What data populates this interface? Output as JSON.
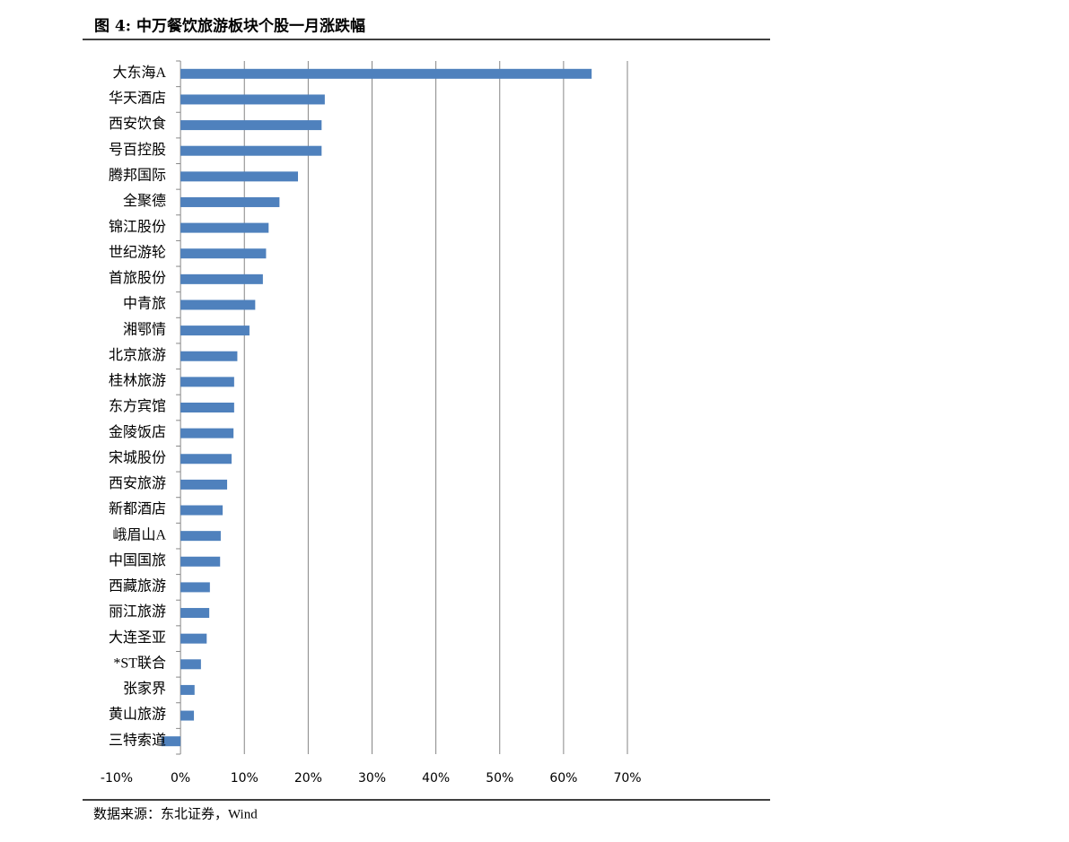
{
  "chart_data": {
    "type": "barh",
    "title": "图 4:  中万餐饮旅游板块个股一月涨跌幅",
    "source": "数据来源：东北证券，Wind",
    "categories": [
      "大东海A",
      "华天酒店",
      "西安饮食",
      "号百控股",
      "腾邦国际",
      "全聚德",
      "锦江股份",
      "世纪游轮",
      "首旅股份",
      "中青旅",
      "湘鄂情",
      "北京旅游",
      "桂林旅游",
      "东方宾馆",
      "金陵饭店",
      "宋城股份",
      "西安旅游",
      "新都酒店",
      "峨眉山A",
      "中国国旅",
      "西藏旅游",
      "丽江旅游",
      "大连圣亚",
      "*ST联合",
      "张家界",
      "黄山旅游",
      "三特索道"
    ],
    "values": [
      64.4,
      22.6,
      22.1,
      22.1,
      18.4,
      15.5,
      13.8,
      13.4,
      12.9,
      11.7,
      10.8,
      8.9,
      8.4,
      8.4,
      8.3,
      8.0,
      7.3,
      6.6,
      6.3,
      6.2,
      4.6,
      4.5,
      4.1,
      3.2,
      2.2,
      2.1,
      -3.0
    ],
    "color": "#4f81bd",
    "xlim": [
      -10,
      70
    ],
    "xticks": [
      {
        "value": -10,
        "label": "-10%"
      },
      {
        "value": 0,
        "label": "0%"
      },
      {
        "value": 10,
        "label": "10%"
      },
      {
        "value": 20,
        "label": "20%"
      },
      {
        "value": 30,
        "label": "30%"
      },
      {
        "value": 40,
        "label": "40%"
      },
      {
        "value": 50,
        "label": "50%"
      },
      {
        "value": 60,
        "label": "60%"
      },
      {
        "value": 70,
        "label": "70%"
      }
    ],
    "grid": true
  }
}
